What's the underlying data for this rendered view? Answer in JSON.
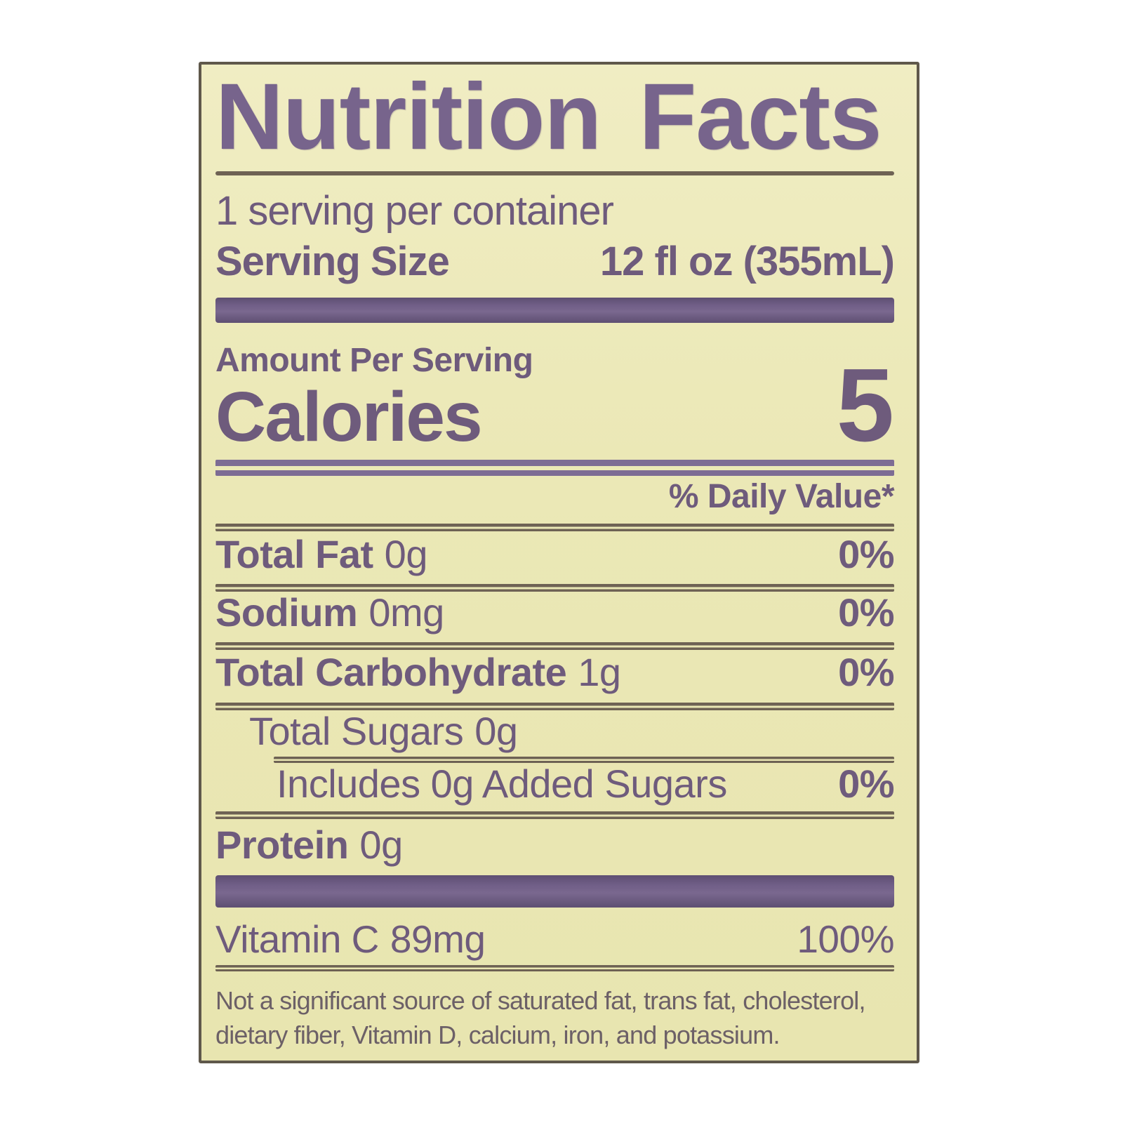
{
  "colors": {
    "page_bg": "#ffffff",
    "label_bg_top": "#f0edc3",
    "label_bg_bottom": "#e8e5b0",
    "border": "#5f584b",
    "title_text": "#77648c",
    "body_text": "#6e5b7c",
    "muted_text": "#6c6067",
    "bar": "#705e87",
    "rule": "#6e6254",
    "purple_rule": "#7d6c94"
  },
  "label": {
    "title": "Nutrition Facts",
    "servings_per_container": "1 serving per container",
    "serving_size_label": "Serving Size",
    "serving_size_value": "12 fl oz (355mL)",
    "amount_per_serving": "Amount Per Serving",
    "calories_label": "Calories",
    "calories_value": "5",
    "daily_value_header": "% Daily Value*",
    "rows": [
      {
        "name": "Total Fat",
        "amount": "0g",
        "dv": "0%"
      },
      {
        "name": "Sodium",
        "amount": "0mg",
        "dv": "0%"
      },
      {
        "name": "Total Carbohydrate",
        "amount": "1g",
        "dv": "0%"
      },
      {
        "name": "Total Sugars",
        "amount": "0g",
        "dv": ""
      },
      {
        "name": "Includes 0g Added Sugars",
        "amount": "",
        "dv": "0%"
      },
      {
        "name": "Protein",
        "amount": "0g",
        "dv": ""
      }
    ],
    "vitamin_row": {
      "name": "Vitamin C",
      "amount": "89mg",
      "dv": "100%"
    },
    "footnote_line1": "Not a significant source of saturated fat, trans fat, cholesterol,",
    "footnote_line2": "dietary fiber, Vitamin D, calcium, iron, and potassium."
  }
}
